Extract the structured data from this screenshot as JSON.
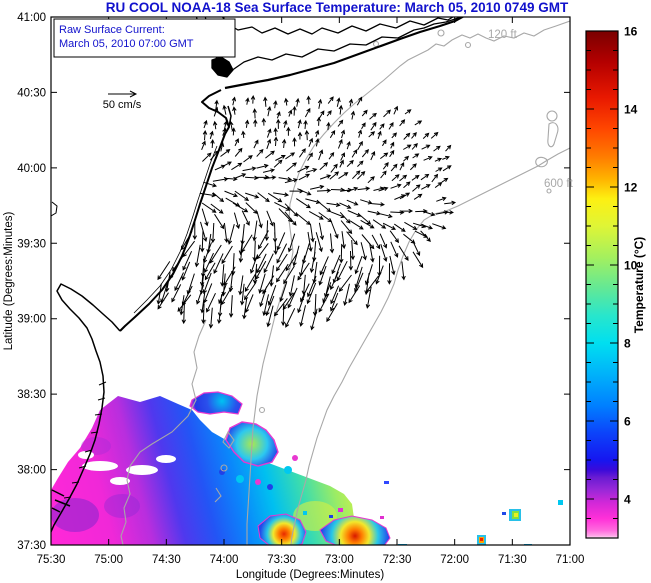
{
  "title": "RU COOL  NOAA-18  Sea Surface Temperature:  March 05, 2010 0749 GMT",
  "colors": {
    "title_blue": "#1111cc",
    "annotation_blue": "#1111cc",
    "contour_gray": "#a8a8a8",
    "coast_black": "#000000",
    "frame_black": "#000000"
  },
  "annotation_box": {
    "line1": "Raw Surface Current:",
    "line2": "March 05, 2010 07:00 GMT"
  },
  "quiver_legend_label": "50 cm/s",
  "contour_labels": {
    "shallow": "120 ft",
    "deep": "600 ft"
  },
  "axes": {
    "xlabel": "Longitude (Degrees:Minutes)",
    "ylabel": "Latitude (Degrees:Minutes)",
    "xticks": [
      "75:30",
      "75:00",
      "74:30",
      "74:00",
      "73:30",
      "73:00",
      "72:30",
      "72:00",
      "71:30",
      "71:00"
    ],
    "yticks": [
      "41:00",
      "40:30",
      "40:00",
      "39:30",
      "39:00",
      "38:30",
      "38:00",
      "37:30"
    ]
  },
  "colorbar": {
    "label": "Temperature (°C)",
    "major_ticks": [
      16,
      14,
      12,
      10,
      8,
      6,
      4
    ],
    "minor_step": 0.5,
    "value_min": 3,
    "value_max": 16,
    "stops": [
      {
        "v": 16.0,
        "c": "#7a0000"
      },
      {
        "v": 15.2,
        "c": "#b40000"
      },
      {
        "v": 14.3,
        "c": "#e81800"
      },
      {
        "v": 13.5,
        "c": "#ff4600"
      },
      {
        "v": 12.8,
        "c": "#ff7a00"
      },
      {
        "v": 12.2,
        "c": "#ffb400"
      },
      {
        "v": 11.7,
        "c": "#fdf012"
      },
      {
        "v": 11.0,
        "c": "#dff536"
      },
      {
        "v": 10.2,
        "c": "#a4f05e"
      },
      {
        "v": 9.4,
        "c": "#62e896"
      },
      {
        "v": 8.7,
        "c": "#28e6cc"
      },
      {
        "v": 8.0,
        "c": "#00dff0"
      },
      {
        "v": 7.2,
        "c": "#00b2fa"
      },
      {
        "v": 6.4,
        "c": "#0080ff"
      },
      {
        "v": 5.7,
        "c": "#0c44fa"
      },
      {
        "v": 5.0,
        "c": "#1616f0"
      },
      {
        "v": 4.75,
        "c": "#3a0ada"
      },
      {
        "v": 4.55,
        "c": "#6a1cd2"
      },
      {
        "v": 4.25,
        "c": "#9628d8"
      },
      {
        "v": 3.9,
        "c": "#d228d8"
      },
      {
        "v": 3.5,
        "c": "#ff30d8"
      },
      {
        "v": 3.2,
        "c": "#ff6ade"
      },
      {
        "v": 3.05,
        "c": "#ffaae9"
      },
      {
        "v": 3.0,
        "c": "#fff4fb"
      }
    ]
  },
  "chart_data": {
    "type": "heatmap",
    "title": "RU COOL  NOAA-18  Sea Surface Temperature:  March 05, 2010 0749 GMT",
    "xlabel": "Longitude (Degrees:Minutes)",
    "ylabel": "Latitude (Degrees:Minutes)",
    "x_tick_labels": [
      "75:30",
      "75:00",
      "74:30",
      "74:00",
      "73:30",
      "73:00",
      "72:30",
      "72:00",
      "71:30",
      "71:00"
    ],
    "y_tick_labels": [
      "41:00",
      "40:30",
      "40:00",
      "39:30",
      "39:00",
      "38:30",
      "38:00",
      "37:30"
    ],
    "x_range_deg_west": [
      75.5,
      71.0
    ],
    "y_range_deg_north": [
      37.5,
      41.0
    ],
    "colorbar": {
      "label": "Temperature (°C)",
      "range_degC": [
        3,
        16
      ],
      "major_ticks": [
        4,
        6,
        8,
        10,
        12,
        14,
        16
      ]
    },
    "overlays": [
      "coastline (NJ, Long Island, Delaware Bay)",
      "bathymetry contours labeled 120 ft and 600 ft",
      "HF-radar surface current vectors (scale arrow 50 cm/s) over NY Bight, approx 73°-74°W, 39°-40.5°N",
      "partial cloud-free SST patches in SW quadrant, approx 3-12 °C (magenta ~3-4 °C nearshore grading to blue/cyan/green ~6-11 °C offshore, small warm cells to 13 °C)"
    ],
    "annotations": [
      "Raw Surface Current:",
      "March 05, 2010 07:00 GMT",
      "50 cm/s",
      "120 ft",
      "600 ft"
    ]
  }
}
